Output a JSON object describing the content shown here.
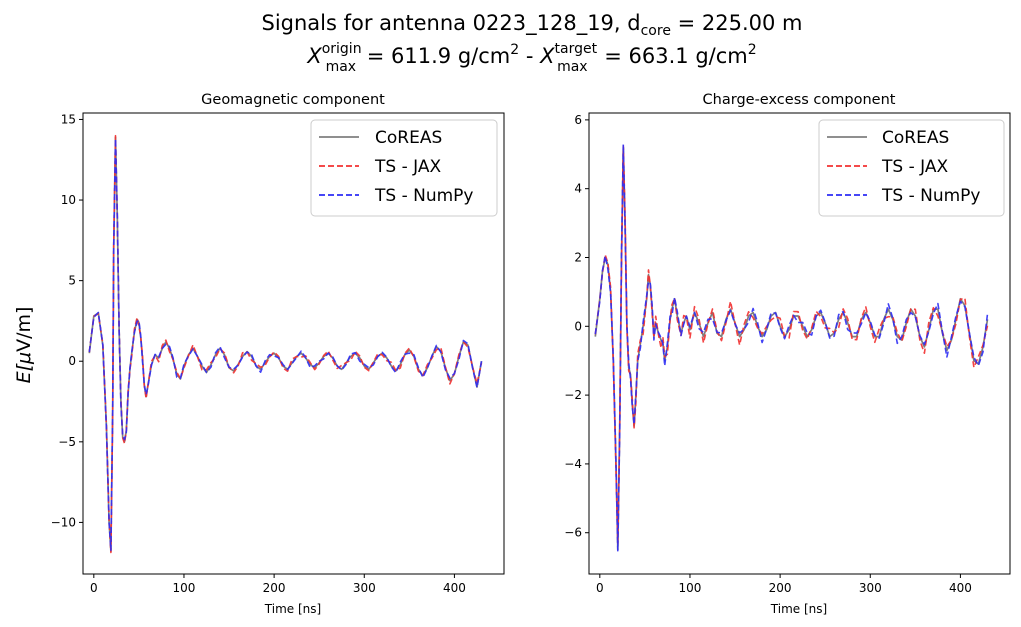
{
  "figure": {
    "title_line1": "Signals for antenna 0223_128_19, d",
    "title_line1_sub": "core",
    "title_line1_tail": " = 225.00 m",
    "title_line2_a": "X",
    "title_line2_a_sup": "origin",
    "title_line2_a_sub": "max",
    "title_line2_mid": " =  611.9 g/cm",
    "title_line2_sep": " -  ",
    "title_line2_b": "X",
    "title_line2_b_sup": "target",
    "title_line2_b_sub": "max",
    "title_line2_end": " =  663.1 g/cm",
    "sq": "2",
    "ylabel_prefix": "E[",
    "ylabel_mu": "μ",
    "ylabel_suffix": "V/m]"
  },
  "chart_data": [
    {
      "type": "line",
      "title": "Geomagnetic component",
      "xlabel": "Time [ns]",
      "ylabel": "E[μV/m]",
      "xlim": [
        -12,
        455
      ],
      "ylim": [
        -13.2,
        15.4
      ],
      "xticks": [
        0,
        100,
        200,
        300,
        400
      ],
      "yticks": [
        -10,
        -5,
        0,
        5,
        10,
        15
      ],
      "legend_position": "top-right",
      "series": [
        {
          "name": "CoREAS",
          "color": "#7f7f7f",
          "style": "solid"
        },
        {
          "name": "TS - JAX",
          "color": "#f23030",
          "style": "dashed"
        },
        {
          "name": "TS - NumPy",
          "color": "#2d2df5",
          "style": "dashed"
        }
      ],
      "x": [
        -5,
        0,
        5,
        10,
        14,
        17,
        19,
        21,
        22,
        24,
        26,
        28,
        30,
        32,
        34,
        36,
        38,
        40,
        42,
        45,
        48,
        50,
        52,
        54,
        56,
        58,
        60,
        64,
        68,
        72,
        76,
        80,
        84,
        88,
        92,
        96,
        100,
        105,
        110,
        115,
        120,
        125,
        130,
        135,
        140,
        145,
        150,
        155,
        160,
        165,
        170,
        175,
        180,
        185,
        190,
        195,
        200,
        205,
        210,
        215,
        220,
        225,
        230,
        235,
        240,
        245,
        250,
        255,
        260,
        265,
        270,
        275,
        280,
        285,
        290,
        295,
        300,
        305,
        310,
        315,
        320,
        325,
        330,
        335,
        340,
        345,
        350,
        355,
        360,
        365,
        370,
        375,
        380,
        385,
        390,
        395,
        400,
        405,
        410,
        415,
        420,
        425,
        430
      ],
      "values": [
        0.5,
        2.8,
        3.0,
        1.0,
        -4.0,
        -10.0,
        -11.8,
        -3.0,
        7.0,
        13.9,
        9.0,
        2.0,
        -2.5,
        -4.7,
        -5.0,
        -4.3,
        -2.0,
        -0.5,
        0.5,
        1.8,
        2.6,
        2.4,
        1.5,
        0.2,
        -1.5,
        -2.2,
        -1.5,
        -0.2,
        0.4,
        0.2,
        0.8,
        1.2,
        0.8,
        0.1,
        -0.8,
        -1.1,
        -0.3,
        0.4,
        0.8,
        0.3,
        -0.3,
        -0.7,
        -0.2,
        0.4,
        0.8,
        0.4,
        -0.4,
        -0.6,
        -0.2,
        0.3,
        0.6,
        0.3,
        -0.3,
        -0.5,
        -0.1,
        0.3,
        0.5,
        0.2,
        -0.3,
        -0.5,
        -0.1,
        0.3,
        0.5,
        0.2,
        -0.2,
        -0.4,
        -0.1,
        0.3,
        0.5,
        0.2,
        -0.3,
        -0.5,
        -0.1,
        0.3,
        0.5,
        0.2,
        -0.3,
        -0.5,
        -0.1,
        0.3,
        0.5,
        0.2,
        -0.3,
        -0.6,
        -0.2,
        0.4,
        0.7,
        0.3,
        -0.5,
        -0.9,
        -0.4,
        0.3,
        0.9,
        0.6,
        -0.4,
        -1.2,
        -0.8,
        0.3,
        1.2,
        1.0,
        -0.3,
        -1.6,
        0.0
      ]
    },
    {
      "type": "line",
      "title": "Charge-excess component",
      "xlabel": "Time [ns]",
      "ylabel": "",
      "xlim": [
        -12,
        455
      ],
      "ylim": [
        -7.2,
        6.2
      ],
      "xticks": [
        0,
        100,
        200,
        300,
        400
      ],
      "yticks": [
        -6,
        -4,
        -2,
        0,
        2,
        4,
        6
      ],
      "legend_position": "top-right",
      "series": [
        {
          "name": "CoREAS",
          "color": "#7f7f7f",
          "style": "solid"
        },
        {
          "name": "TS - JAX",
          "color": "#f23030",
          "style": "dashed"
        },
        {
          "name": "TS - NumPy",
          "color": "#2d2df5",
          "style": "dashed"
        }
      ],
      "x": [
        -5,
        0,
        3,
        6,
        9,
        12,
        15,
        18,
        20,
        22,
        24,
        26,
        28,
        30,
        32,
        34,
        36,
        38,
        40,
        42,
        45,
        48,
        52,
        54,
        56,
        58,
        60,
        62,
        65,
        68,
        70,
        72,
        75,
        78,
        80,
        83,
        86,
        90,
        93,
        96,
        100,
        105,
        110,
        115,
        120,
        125,
        130,
        135,
        140,
        145,
        150,
        155,
        160,
        165,
        170,
        175,
        180,
        185,
        190,
        195,
        200,
        205,
        210,
        215,
        220,
        225,
        230,
        235,
        240,
        245,
        250,
        255,
        260,
        265,
        270,
        275,
        280,
        285,
        290,
        295,
        300,
        305,
        310,
        315,
        320,
        325,
        330,
        335,
        340,
        345,
        350,
        355,
        360,
        365,
        370,
        375,
        380,
        385,
        390,
        395,
        400,
        405,
        410,
        415,
        420,
        425,
        430
      ],
      "values": [
        -0.3,
        0.8,
        1.6,
        2.0,
        1.8,
        1.0,
        -1.0,
        -4.0,
        -6.5,
        -3.0,
        2.0,
        5.2,
        3.0,
        0.0,
        -1.2,
        -1.4,
        -2.3,
        -2.9,
        -2.0,
        -1.0,
        -0.5,
        0.0,
        0.8,
        1.5,
        1.2,
        0.5,
        -0.3,
        0.1,
        -0.2,
        -0.4,
        -0.5,
        -1.0,
        -0.6,
        0.2,
        0.5,
        0.8,
        0.3,
        -0.2,
        0.1,
        0.3,
        -0.1,
        0.4,
        0.1,
        -0.3,
        0.1,
        0.4,
        -0.2,
        -0.3,
        0.2,
        0.5,
        0.1,
        -0.3,
        -0.1,
        0.3,
        0.4,
        0.0,
        -0.3,
        -0.1,
        0.3,
        0.4,
        0.0,
        -0.3,
        -0.1,
        0.3,
        0.3,
        0.0,
        -0.3,
        -0.1,
        0.3,
        0.4,
        0.1,
        -0.3,
        -0.2,
        0.2,
        0.4,
        0.1,
        -0.3,
        -0.3,
        0.2,
        0.4,
        0.1,
        -0.3,
        -0.3,
        0.2,
        0.5,
        0.2,
        -0.3,
        -0.4,
        0.1,
        0.5,
        0.3,
        -0.3,
        -0.6,
        -0.1,
        0.5,
        0.5,
        -0.2,
        -0.7,
        -0.4,
        0.2,
        0.8,
        0.6,
        -0.2,
        -1.0,
        -1.1,
        -0.6,
        0.2
      ]
    }
  ]
}
